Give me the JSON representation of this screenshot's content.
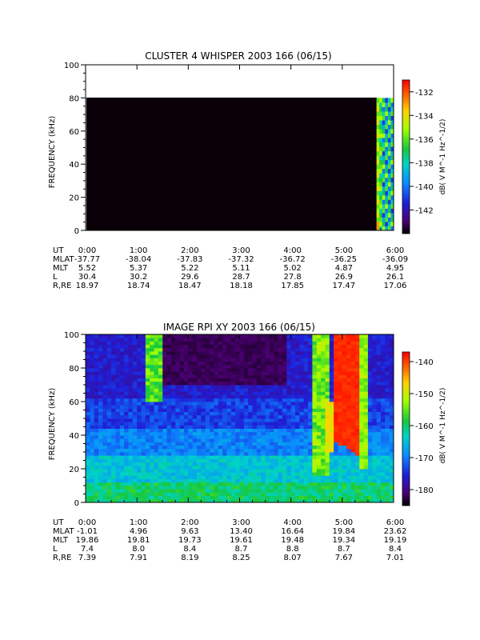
{
  "chart_data": [
    {
      "type": "heatmap",
      "title": "CLUSTER 4 WHISPER 2003 166 (06/15)",
      "ylabel": "FREQUENCY (kHz)",
      "ylim": [
        0,
        100
      ],
      "y_ticks": [
        "0",
        "20",
        "40",
        "60",
        "80",
        "100"
      ],
      "x_ticks": [
        "0:00",
        "1:00",
        "2:00",
        "3:00",
        "4:00",
        "5:00",
        "6:00"
      ],
      "data_extent": {
        "x": [
          "0:00",
          "6:00"
        ],
        "y": [
          0,
          80
        ]
      },
      "note_values": {
        "background_dB": -144,
        "active_interval": [
          "5:40",
          "6:00"
        ],
        "active_dB_range": [
          -141,
          -133
        ]
      },
      "colorbar": {
        "label": "dB( V M^-1 Hz^-1/2)",
        "ticks": [
          "-132",
          "-134",
          "-136",
          "-138",
          "-140",
          "-142"
        ],
        "range": [
          -144,
          -131
        ]
      },
      "ephemeris": {
        "labels": [
          "UT",
          "MLAT",
          "MLT",
          "L",
          "R,RE"
        ],
        "rows": [
          [
            "0:00",
            "1:00",
            "2:00",
            "3:00",
            "4:00",
            "5:00",
            "6:00"
          ],
          [
            "-37.77",
            "-38.04",
            "-37.83",
            "-37.32",
            "-36.72",
            "-36.25",
            "-36.09"
          ],
          [
            "5.52",
            "5.37",
            "5.22",
            "5.11",
            "5.02",
            "4.87",
            "4.95"
          ],
          [
            "30.4",
            "30.2",
            "29.6",
            "28.7",
            "27.8",
            "26.9",
            "26.1"
          ],
          [
            "18.97",
            "18.74",
            "18.47",
            "18.18",
            "17.85",
            "17.47",
            "17.06"
          ]
        ]
      }
    },
    {
      "type": "heatmap",
      "title": "IMAGE RPI XY 2003 166 (06/15)",
      "ylabel": "FREQUENCY (kHz)",
      "ylim": [
        0,
        100
      ],
      "y_ticks": [
        "0",
        "20",
        "40",
        "60",
        "80",
        "100"
      ],
      "x_ticks": [
        "0:00",
        "1:00",
        "2:00",
        "3:00",
        "4:00",
        "5:00",
        "6:00"
      ],
      "colorbar": {
        "label": "dB( V M^-1 Hz^-1/2)",
        "ticks": [
          "-140",
          "-150",
          "-160",
          "-170",
          "-180"
        ],
        "range": [
          -185,
          -137
        ]
      },
      "ephemeris": {
        "labels": [
          "UT",
          "MLAT",
          "MLT",
          "L",
          "R,RE"
        ],
        "rows": [
          [
            "0:00",
            "1:00",
            "2:00",
            "3:00",
            "4:00",
            "5:00",
            "6:00"
          ],
          [
            "-1.01",
            "4.96",
            "9.63",
            "13.40",
            "16.64",
            "19.84",
            "23.62"
          ],
          [
            "19.86",
            "19.81",
            "19.73",
            "19.61",
            "19.48",
            "19.34",
            "19.19"
          ],
          [
            "7.4",
            "8.0",
            "8.4",
            "8.7",
            "8.8",
            "8.7",
            "8.4"
          ],
          [
            "7.39",
            "7.91",
            "8.19",
            "8.25",
            "8.07",
            "7.67",
            "7.01"
          ]
        ]
      }
    }
  ]
}
